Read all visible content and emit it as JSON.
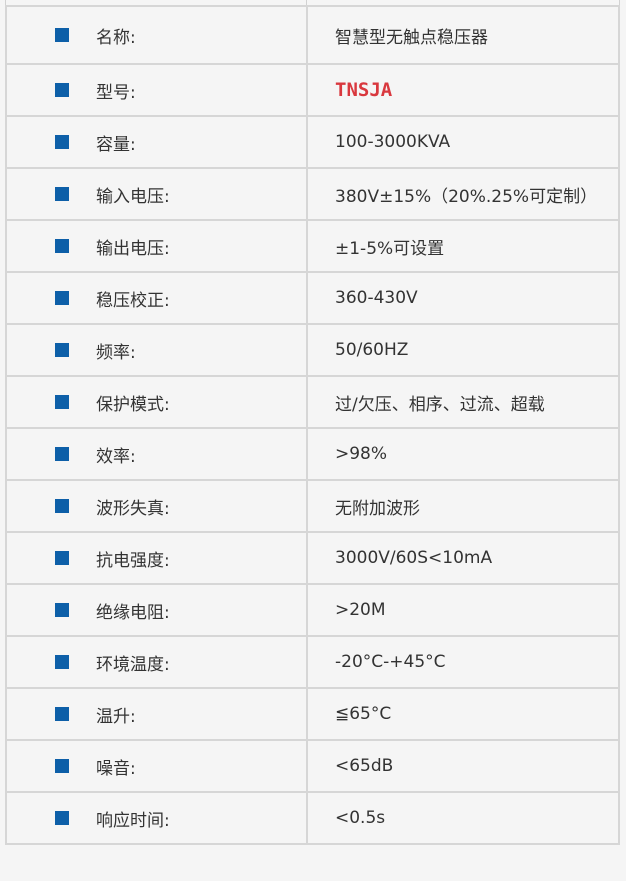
{
  "colors": {
    "bullet": "#0d5fa8",
    "highlight": "#d9383e"
  },
  "specs": [
    {
      "label": "名称:",
      "value": "智慧型无触点稳压器"
    },
    {
      "label": "型号:",
      "value": "TNSJA",
      "highlight": true
    },
    {
      "label": "容量:",
      "value": "100-3000KVA"
    },
    {
      "label": "输入电压:",
      "value": "380V±15%（20%.25%可定制）"
    },
    {
      "label": "输出电压:",
      "value": "±1-5%可设置"
    },
    {
      "label": "稳压校正:",
      "value": "360-430V"
    },
    {
      "label": "频率:",
      "value": "50/60HZ"
    },
    {
      "label": "保护模式:",
      "value": "过/欠压、相序、过流、超载"
    },
    {
      "label": "效率:",
      "value": ">98%"
    },
    {
      "label": "波形失真:",
      "value": "无附加波形"
    },
    {
      "label": "抗电强度:",
      "value": "3000V/60S<10mA"
    },
    {
      "label": "绝缘电阻:",
      "value": ">20M"
    },
    {
      "label": "环境温度:",
      "value": "-20°C-+45°C"
    },
    {
      "label": "温升:",
      "value": "≦65°C"
    },
    {
      "label": "噪音:",
      "value": "<65dB"
    },
    {
      "label": "响应时间:",
      "value": "<0.5s"
    }
  ]
}
